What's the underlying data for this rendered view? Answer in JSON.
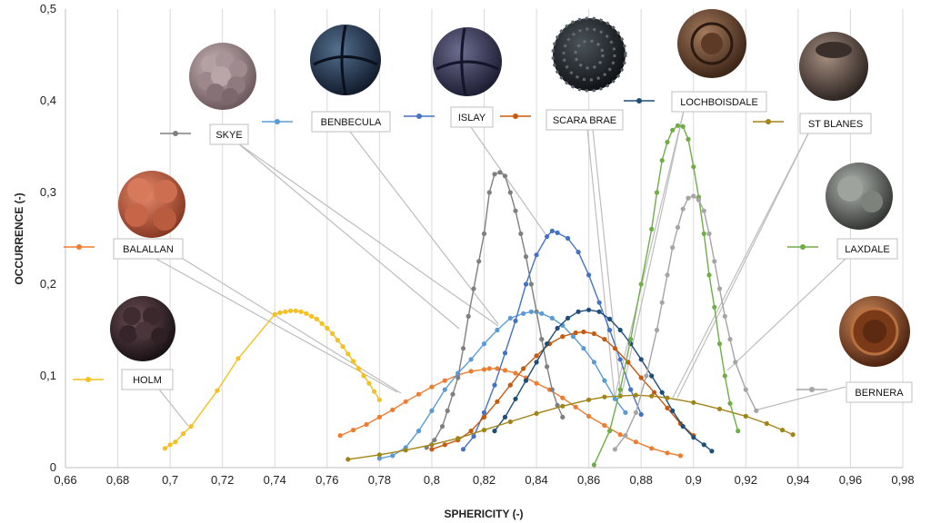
{
  "chart_data": {
    "type": "scatter",
    "xlabel": "SPHERICITY (-)",
    "ylabel": "OCCURRENCE (-)",
    "xlim": [
      0.66,
      0.98
    ],
    "ylim": [
      0,
      0.5
    ],
    "xticks": [
      "0,66",
      "0,68",
      "0,7",
      "0,72",
      "0,74",
      "0,76",
      "0,78",
      "0,8",
      "0,82",
      "0,84",
      "0,86",
      "0,88",
      "0,9",
      "0,92",
      "0,94",
      "0,96",
      "0,98"
    ],
    "yticks": [
      "0",
      "0,1",
      "0,2",
      "0,3",
      "0,4",
      "0,5"
    ],
    "grid": "vertical",
    "series": [
      {
        "name": "HOLM",
        "color": "#f5c021",
        "points": [
          [
            0.698,
            0.021
          ],
          [
            0.7,
            0.025
          ],
          [
            0.702,
            0.028
          ],
          [
            0.705,
            0.037
          ],
          [
            0.708,
            0.045
          ],
          [
            0.718,
            0.084
          ],
          [
            0.726,
            0.119
          ],
          [
            0.74,
            0.167
          ],
          [
            0.742,
            0.169
          ],
          [
            0.744,
            0.17
          ],
          [
            0.746,
            0.171
          ],
          [
            0.748,
            0.171
          ],
          [
            0.75,
            0.17
          ],
          [
            0.752,
            0.168
          ],
          [
            0.754,
            0.165
          ],
          [
            0.756,
            0.162
          ],
          [
            0.758,
            0.157
          ],
          [
            0.76,
            0.152
          ],
          [
            0.762,
            0.146
          ],
          [
            0.764,
            0.139
          ],
          [
            0.766,
            0.132
          ],
          [
            0.768,
            0.124
          ],
          [
            0.77,
            0.116
          ],
          [
            0.772,
            0.108
          ],
          [
            0.774,
            0.1
          ],
          [
            0.776,
            0.092
          ],
          [
            0.778,
            0.083
          ],
          [
            0.78,
            0.074
          ]
        ]
      },
      {
        "name": "BALALLAN",
        "color": "#ed7d31",
        "points": [
          [
            0.765,
            0.035
          ],
          [
            0.77,
            0.041
          ],
          [
            0.775,
            0.047
          ],
          [
            0.78,
            0.055
          ],
          [
            0.785,
            0.063
          ],
          [
            0.79,
            0.072
          ],
          [
            0.795,
            0.08
          ],
          [
            0.8,
            0.088
          ],
          [
            0.805,
            0.095
          ],
          [
            0.81,
            0.101
          ],
          [
            0.815,
            0.105
          ],
          [
            0.82,
            0.107
          ],
          [
            0.822,
            0.108
          ],
          [
            0.825,
            0.108
          ],
          [
            0.828,
            0.106
          ],
          [
            0.832,
            0.103
          ],
          [
            0.836,
            0.098
          ],
          [
            0.84,
            0.092
          ],
          [
            0.845,
            0.085
          ],
          [
            0.85,
            0.076
          ],
          [
            0.855,
            0.066
          ],
          [
            0.86,
            0.056
          ],
          [
            0.866,
            0.046
          ],
          [
            0.872,
            0.036
          ],
          [
            0.878,
            0.028
          ],
          [
            0.884,
            0.021
          ],
          [
            0.89,
            0.016
          ],
          [
            0.895,
            0.013
          ]
        ]
      },
      {
        "name": "SKYE",
        "color": "#7f7f7f",
        "points": [
          [
            0.798,
            0.022
          ],
          [
            0.801,
            0.03
          ],
          [
            0.804,
            0.045
          ],
          [
            0.806,
            0.062
          ],
          [
            0.808,
            0.08
          ],
          [
            0.81,
            0.098
          ],
          [
            0.812,
            0.13
          ],
          [
            0.814,
            0.165
          ],
          [
            0.816,
            0.195
          ],
          [
            0.818,
            0.225
          ],
          [
            0.82,
            0.255
          ],
          [
            0.822,
            0.3
          ],
          [
            0.824,
            0.32
          ],
          [
            0.826,
            0.322
          ],
          [
            0.828,
            0.318
          ],
          [
            0.83,
            0.3
          ],
          [
            0.832,
            0.28
          ],
          [
            0.834,
            0.255
          ],
          [
            0.836,
            0.23
          ],
          [
            0.838,
            0.2
          ],
          [
            0.84,
            0.17
          ],
          [
            0.842,
            0.14
          ],
          [
            0.844,
            0.11
          ],
          [
            0.846,
            0.085
          ],
          [
            0.848,
            0.068
          ],
          [
            0.85,
            0.055
          ]
        ]
      },
      {
        "name": "BENBECULA",
        "color": "#5b9bd5",
        "points": [
          [
            0.78,
            0.01
          ],
          [
            0.785,
            0.013
          ],
          [
            0.79,
            0.022
          ],
          [
            0.795,
            0.04
          ],
          [
            0.8,
            0.062
          ],
          [
            0.805,
            0.085
          ],
          [
            0.81,
            0.103
          ],
          [
            0.815,
            0.118
          ],
          [
            0.82,
            0.135
          ],
          [
            0.825,
            0.15
          ],
          [
            0.83,
            0.163
          ],
          [
            0.835,
            0.168
          ],
          [
            0.838,
            0.17
          ],
          [
            0.842,
            0.168
          ],
          [
            0.846,
            0.163
          ],
          [
            0.85,
            0.155
          ],
          [
            0.854,
            0.143
          ],
          [
            0.858,
            0.13
          ],
          [
            0.862,
            0.115
          ],
          [
            0.866,
            0.095
          ],
          [
            0.87,
            0.075
          ],
          [
            0.874,
            0.06
          ]
        ]
      },
      {
        "name": "ISLAY",
        "color": "#4472c4",
        "points": [
          [
            0.812,
            0.02
          ],
          [
            0.816,
            0.034
          ],
          [
            0.82,
            0.06
          ],
          [
            0.824,
            0.09
          ],
          [
            0.828,
            0.125
          ],
          [
            0.832,
            0.16
          ],
          [
            0.836,
            0.2
          ],
          [
            0.84,
            0.232
          ],
          [
            0.844,
            0.252
          ],
          [
            0.846,
            0.258
          ],
          [
            0.848,
            0.256
          ],
          [
            0.852,
            0.25
          ],
          [
            0.856,
            0.235
          ],
          [
            0.86,
            0.21
          ],
          [
            0.864,
            0.18
          ],
          [
            0.868,
            0.15
          ],
          [
            0.872,
            0.118
          ],
          [
            0.876,
            0.085
          ],
          [
            0.88,
            0.058
          ]
        ]
      },
      {
        "name": "SCARA BRAE",
        "color": "#c55a11",
        "points": [
          [
            0.8,
            0.02
          ],
          [
            0.805,
            0.025
          ],
          [
            0.81,
            0.03
          ],
          [
            0.815,
            0.04
          ],
          [
            0.82,
            0.055
          ],
          [
            0.825,
            0.072
          ],
          [
            0.83,
            0.09
          ],
          [
            0.835,
            0.108
          ],
          [
            0.84,
            0.122
          ],
          [
            0.845,
            0.135
          ],
          [
            0.85,
            0.143
          ],
          [
            0.855,
            0.147
          ],
          [
            0.858,
            0.148
          ],
          [
            0.862,
            0.146
          ],
          [
            0.866,
            0.14
          ],
          [
            0.87,
            0.13
          ],
          [
            0.875,
            0.115
          ],
          [
            0.88,
            0.098
          ],
          [
            0.885,
            0.082
          ],
          [
            0.89,
            0.065
          ],
          [
            0.895,
            0.048
          ],
          [
            0.9,
            0.035
          ]
        ]
      },
      {
        "name": "LOCHBOISDALE",
        "color": "#1f4e79",
        "points": [
          [
            0.824,
            0.04
          ],
          [
            0.828,
            0.055
          ],
          [
            0.832,
            0.075
          ],
          [
            0.836,
            0.095
          ],
          [
            0.84,
            0.115
          ],
          [
            0.844,
            0.135
          ],
          [
            0.848,
            0.152
          ],
          [
            0.852,
            0.163
          ],
          [
            0.856,
            0.17
          ],
          [
            0.86,
            0.172
          ],
          [
            0.864,
            0.17
          ],
          [
            0.868,
            0.162
          ],
          [
            0.872,
            0.15
          ],
          [
            0.876,
            0.135
          ],
          [
            0.88,
            0.118
          ],
          [
            0.884,
            0.1
          ],
          [
            0.888,
            0.082
          ],
          [
            0.892,
            0.062
          ],
          [
            0.896,
            0.045
          ],
          [
            0.9,
            0.033
          ],
          [
            0.904,
            0.025
          ],
          [
            0.907,
            0.018
          ]
        ]
      },
      {
        "name": "ST BLANES",
        "color": "#a08418",
        "points": [
          [
            0.768,
            0.009
          ],
          [
            0.78,
            0.014
          ],
          [
            0.79,
            0.019
          ],
          [
            0.8,
            0.025
          ],
          [
            0.81,
            0.032
          ],
          [
            0.82,
            0.041
          ],
          [
            0.83,
            0.05
          ],
          [
            0.84,
            0.059
          ],
          [
            0.85,
            0.067
          ],
          [
            0.86,
            0.074
          ],
          [
            0.866,
            0.077
          ],
          [
            0.872,
            0.078
          ],
          [
            0.878,
            0.079
          ],
          [
            0.884,
            0.078
          ],
          [
            0.89,
            0.076
          ],
          [
            0.9,
            0.071
          ],
          [
            0.91,
            0.064
          ],
          [
            0.92,
            0.056
          ],
          [
            0.928,
            0.048
          ],
          [
            0.934,
            0.041
          ],
          [
            0.938,
            0.036
          ]
        ]
      },
      {
        "name": "LAXDALE",
        "color": "#70ad47",
        "points": [
          [
            0.862,
            0.003
          ],
          [
            0.868,
            0.04
          ],
          [
            0.872,
            0.085
          ],
          [
            0.876,
            0.14
          ],
          [
            0.88,
            0.2
          ],
          [
            0.884,
            0.26
          ],
          [
            0.886,
            0.3
          ],
          [
            0.888,
            0.335
          ],
          [
            0.89,
            0.355
          ],
          [
            0.892,
            0.368
          ],
          [
            0.894,
            0.373
          ],
          [
            0.896,
            0.372
          ],
          [
            0.898,
            0.358
          ],
          [
            0.9,
            0.328
          ],
          [
            0.902,
            0.295
          ],
          [
            0.904,
            0.255
          ],
          [
            0.906,
            0.21
          ],
          [
            0.908,
            0.175
          ],
          [
            0.91,
            0.135
          ],
          [
            0.912,
            0.1
          ],
          [
            0.914,
            0.07
          ],
          [
            0.917,
            0.04
          ]
        ]
      },
      {
        "name": "BERNERA",
        "color": "#a5a5a5",
        "points": [
          [
            0.87,
            0.02
          ],
          [
            0.874,
            0.035
          ],
          [
            0.878,
            0.06
          ],
          [
            0.882,
            0.1
          ],
          [
            0.886,
            0.15
          ],
          [
            0.888,
            0.18
          ],
          [
            0.89,
            0.21
          ],
          [
            0.892,
            0.24
          ],
          [
            0.894,
            0.262
          ],
          [
            0.896,
            0.282
          ],
          [
            0.898,
            0.294
          ],
          [
            0.9,
            0.296
          ],
          [
            0.902,
            0.292
          ],
          [
            0.904,
            0.28
          ],
          [
            0.906,
            0.255
          ],
          [
            0.908,
            0.225
          ],
          [
            0.91,
            0.195
          ],
          [
            0.912,
            0.165
          ],
          [
            0.914,
            0.14
          ],
          [
            0.916,
            0.115
          ],
          [
            0.92,
            0.085
          ],
          [
            0.924,
            0.062
          ]
        ]
      }
    ],
    "labels": [
      "SKYE",
      "BENBECULA",
      "ISLAY",
      "SCARA BRAE",
      "LOCHBOISDALE",
      "ST BLANES",
      "BALALLAN",
      "LAXDALE",
      "HOLM",
      "BERNERA"
    ]
  }
}
